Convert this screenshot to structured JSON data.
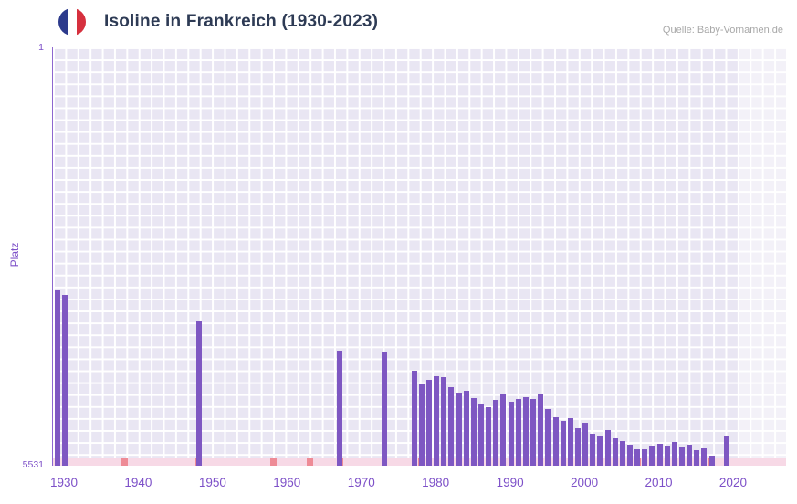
{
  "header": {
    "title": "Isoline in Frankreich (1930-2023)",
    "source": "Quelle: Baby-Vornamen.de",
    "flag_icon": "france-flag-icon"
  },
  "axes": {
    "y_label": "Platz",
    "y_top_tick": "1",
    "y_bottom_tick": "5531",
    "x_ticks": [
      "1930",
      "1940",
      "1950",
      "1960",
      "1970",
      "1980",
      "1990",
      "2000",
      "2010",
      "2020"
    ]
  },
  "colors": {
    "bar": "#7e57c2",
    "axis_text": "#7d50c8",
    "title_text": "#2e3b55",
    "source_text": "#a8a8a8",
    "plot_background": "#e9e6f3",
    "grid": "#ffffff",
    "strip": "#f7d9e6",
    "strip_marker": "#ee8b96",
    "flag_blue": "#2c3a8c",
    "flag_red": "#d6303e"
  },
  "chart_data": {
    "type": "bar",
    "title": "Isoline in Frankreich (1930-2023)",
    "xlabel": "",
    "ylabel": "Platz",
    "legend": "none",
    "grid": "on",
    "y_axis": {
      "min": 1,
      "max": 5531,
      "inverted": true,
      "note": "rank 1 at top, bars grow upward from bottom (rank 5531)"
    },
    "x_axis": {
      "range_shown": [
        1928,
        2027
      ],
      "tick_years": [
        1930,
        1940,
        1950,
        1960,
        1970,
        1980,
        1990,
        2000,
        2010,
        2020
      ]
    },
    "series": [
      {
        "name": "Platz",
        "points": [
          {
            "year": 1929,
            "rank": 3210
          },
          {
            "year": 1930,
            "rank": 3270
          },
          {
            "year": 1948,
            "rank": 3620
          },
          {
            "year": 1967,
            "rank": 4010
          },
          {
            "year": 1973,
            "rank": 4020
          },
          {
            "year": 1977,
            "rank": 4280
          },
          {
            "year": 1978,
            "rank": 4460
          },
          {
            "year": 1979,
            "rank": 4400
          },
          {
            "year": 1980,
            "rank": 4350
          },
          {
            "year": 1981,
            "rank": 4360
          },
          {
            "year": 1982,
            "rank": 4490
          },
          {
            "year": 1983,
            "rank": 4560
          },
          {
            "year": 1984,
            "rank": 4540
          },
          {
            "year": 1985,
            "rank": 4640
          },
          {
            "year": 1986,
            "rank": 4720
          },
          {
            "year": 1987,
            "rank": 4760
          },
          {
            "year": 1988,
            "rank": 4660
          },
          {
            "year": 1989,
            "rank": 4580
          },
          {
            "year": 1990,
            "rank": 4690
          },
          {
            "year": 1991,
            "rank": 4650
          },
          {
            "year": 1992,
            "rank": 4620
          },
          {
            "year": 1993,
            "rank": 4650
          },
          {
            "year": 1994,
            "rank": 4580
          },
          {
            "year": 1995,
            "rank": 4780
          },
          {
            "year": 1996,
            "rank": 4890
          },
          {
            "year": 1997,
            "rank": 4940
          },
          {
            "year": 1998,
            "rank": 4900
          },
          {
            "year": 1999,
            "rank": 5040
          },
          {
            "year": 2000,
            "rank": 4960
          },
          {
            "year": 2001,
            "rank": 5110
          },
          {
            "year": 2002,
            "rank": 5140
          },
          {
            "year": 2003,
            "rank": 5060
          },
          {
            "year": 2004,
            "rank": 5170
          },
          {
            "year": 2005,
            "rank": 5200
          },
          {
            "year": 2006,
            "rank": 5250
          },
          {
            "year": 2007,
            "rank": 5310
          },
          {
            "year": 2008,
            "rank": 5310
          },
          {
            "year": 2009,
            "rank": 5280
          },
          {
            "year": 2010,
            "rank": 5240
          },
          {
            "year": 2011,
            "rank": 5260
          },
          {
            "year": 2012,
            "rank": 5220
          },
          {
            "year": 2013,
            "rank": 5290
          },
          {
            "year": 2014,
            "rank": 5250
          },
          {
            "year": 2015,
            "rank": 5330
          },
          {
            "year": 2016,
            "rank": 5300
          },
          {
            "year": 2017,
            "rank": 5400
          },
          {
            "year": 2019,
            "rank": 5130
          }
        ]
      }
    ],
    "nodata_marker_years": [
      1938,
      1948,
      1958,
      1963,
      1967,
      1978,
      2007,
      2017
    ],
    "future_band_start_year": 2021
  }
}
